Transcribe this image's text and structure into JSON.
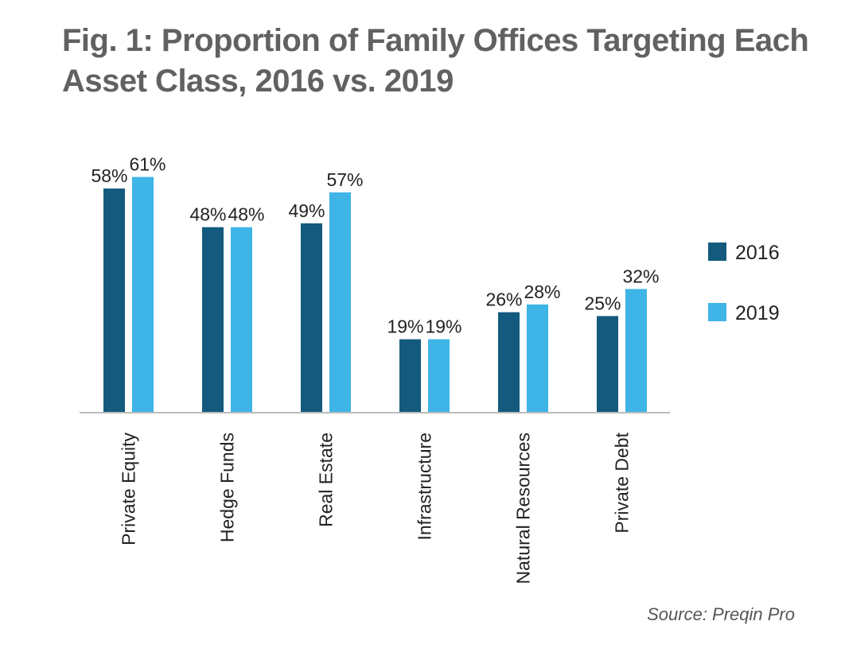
{
  "title": "Fig. 1: Proportion of Family Offices Targeting Each Asset Class, 2016 vs. 2019",
  "source": "Source: Preqin Pro",
  "colors": {
    "2016": "#135a7e",
    "2019": "#3fb4e6",
    "axis": "#bbbbbb"
  },
  "chart_data": {
    "type": "bar",
    "title": "Fig. 1: Proportion of Family Offices Targeting Each Asset Class, 2016 vs. 2019",
    "categories": [
      "Private Equity",
      "Hedge Funds",
      "Real Estate",
      "Infrastructure",
      "Natural Resources",
      "Private Debt"
    ],
    "series": [
      {
        "name": "2016",
        "values": [
          58,
          48,
          49,
          19,
          26,
          25
        ],
        "labels": [
          "58%",
          "48%",
          "49%",
          "19%",
          "26%",
          "25%"
        ]
      },
      {
        "name": "2019",
        "values": [
          61,
          48,
          57,
          19,
          28,
          32
        ],
        "labels": [
          "61%",
          "48%",
          "57%",
          "19%",
          "28%",
          "32%"
        ]
      }
    ],
    "ylim": [
      0,
      70
    ],
    "grid": false,
    "legend": "right"
  }
}
